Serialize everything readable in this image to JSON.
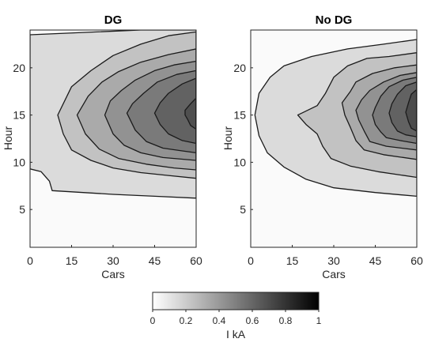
{
  "chart_data": [
    {
      "type": "heatmap",
      "subtype": "filled-contour",
      "title": "DG",
      "xlabel": "Cars",
      "ylabel": "Hour",
      "xlim": [
        0,
        60
      ],
      "ylim": [
        1,
        24
      ],
      "xticks": [
        0,
        15,
        30,
        45,
        60
      ],
      "yticks": [
        5,
        10,
        15,
        20
      ],
      "levels": [
        0.1,
        0.2,
        0.3,
        0.4,
        0.5,
        0.6,
        0.7
      ],
      "peak_value": 0.75,
      "peak_location": {
        "cars": 60,
        "hour": 15
      },
      "contours": [
        {
          "level": 0.1,
          "points": [
            [
              0,
              23.5
            ],
            [
              40,
              24
            ],
            [
              60,
              24
            ],
            [
              60,
              6.2
            ],
            [
              45,
              6.4
            ],
            [
              30,
              6.6
            ],
            [
              8,
              7
            ],
            [
              7,
              8
            ],
            [
              4,
              9
            ],
            [
              0,
              9.3
            ]
          ]
        },
        {
          "level": 0.2,
          "points": [
            [
              60,
              23.8
            ],
            [
              50,
              23.4
            ],
            [
              40,
              22.5
            ],
            [
              30,
              21.3
            ],
            [
              22,
              19.7
            ],
            [
              15,
              18
            ],
            [
              10,
              15
            ],
            [
              12,
              13
            ],
            [
              15,
              11.3
            ],
            [
              22,
              10.2
            ],
            [
              30,
              9.4
            ],
            [
              40,
              8.9
            ],
            [
              50,
              8.6
            ],
            [
              60,
              8.3
            ]
          ]
        },
        {
          "level": 0.3,
          "points": [
            [
              60,
              22
            ],
            [
              50,
              21.4
            ],
            [
              40,
              20.6
            ],
            [
              32,
              19.6
            ],
            [
              26,
              18.5
            ],
            [
              21,
              17
            ],
            [
              17,
              15
            ],
            [
              20,
              13
            ],
            [
              25,
              11.4
            ],
            [
              32,
              10.4
            ],
            [
              42,
              9.8
            ],
            [
              52,
              9.4
            ],
            [
              60,
              9.2
            ]
          ]
        },
        {
          "level": 0.4,
          "points": [
            [
              60,
              20.7
            ],
            [
              52,
              20.3
            ],
            [
              45,
              19.7
            ],
            [
              38,
              18.7
            ],
            [
              33,
              17.6
            ],
            [
              29,
              16.5
            ],
            [
              27,
              15
            ],
            [
              30,
              13
            ],
            [
              34,
              11.8
            ],
            [
              40,
              11
            ],
            [
              48,
              10.5
            ],
            [
              60,
              10.2
            ]
          ]
        },
        {
          "level": 0.5,
          "points": [
            [
              60,
              19.7
            ],
            [
              53,
              19.3
            ],
            [
              46,
              18.5
            ],
            [
              41,
              17.3
            ],
            [
              37,
              16.2
            ],
            [
              35,
              15.2
            ],
            [
              38,
              13.4
            ],
            [
              42,
              12.2
            ],
            [
              48,
              11.5
            ],
            [
              55,
              11.2
            ],
            [
              60,
              11
            ]
          ]
        },
        {
          "level": 0.6,
          "points": [
            [
              60,
              18.9
            ],
            [
              55,
              18.3
            ],
            [
              50,
              17.3
            ],
            [
              47,
              16.3
            ],
            [
              45,
              15.2
            ],
            [
              47,
              14
            ],
            [
              50,
              13
            ],
            [
              55,
              12.3
            ],
            [
              60,
              12
            ]
          ]
        },
        {
          "level": 0.7,
          "points": [
            [
              60,
              16.8
            ],
            [
              58,
              16.2
            ],
            [
              56,
              15.5
            ],
            [
              56,
              15
            ],
            [
              57,
              14.5
            ],
            [
              58,
              13.9
            ],
            [
              60,
              13.5
            ]
          ]
        }
      ]
    },
    {
      "type": "heatmap",
      "subtype": "filled-contour",
      "title": "No DG",
      "xlabel": "Cars",
      "ylabel": "Hour",
      "xlim": [
        0,
        60
      ],
      "ylim": [
        1,
        24
      ],
      "xticks": [
        0,
        15,
        30,
        45,
        60
      ],
      "yticks": [
        5,
        10,
        15,
        20
      ],
      "levels": [
        0.1,
        0.2,
        0.3,
        0.4,
        0.5,
        0.6,
        0.7
      ],
      "peak_value": 0.78,
      "peak_location": {
        "cars": 60,
        "hour": 15
      },
      "contours": [
        {
          "level": 0.1,
          "points": [
            [
              60,
              23
            ],
            [
              48,
              22.5
            ],
            [
              35,
              22
            ],
            [
              22,
              21.2
            ],
            [
              12,
              20.2
            ],
            [
              7,
              19
            ],
            [
              3,
              17.3
            ],
            [
              1.5,
              15
            ],
            [
              3,
              12.8
            ],
            [
              6,
              11
            ],
            [
              12,
              9.5
            ],
            [
              20,
              8.2
            ],
            [
              30,
              7.3
            ],
            [
              45,
              6.8
            ],
            [
              60,
              6.4
            ]
          ]
        },
        {
          "level": 0.2,
          "points": [
            [
              60,
              21.6
            ],
            [
              50,
              21.2
            ],
            [
              42,
              21
            ],
            [
              35,
              20.2
            ],
            [
              30,
              19
            ],
            [
              27,
              17.3
            ],
            [
              24,
              16
            ],
            [
              17,
              15
            ],
            [
              20,
              14
            ],
            [
              24,
              13
            ],
            [
              26,
              11.7
            ],
            [
              29,
              10.4
            ],
            [
              36,
              9.6
            ],
            [
              46,
              9
            ],
            [
              60,
              8.4
            ]
          ]
        },
        {
          "level": 0.3,
          "points": [
            [
              60,
              20.3
            ],
            [
              52,
              20
            ],
            [
              44,
              19.4
            ],
            [
              38,
              18.5
            ],
            [
              36,
              17.5
            ],
            [
              33,
              16.3
            ],
            [
              34,
              15
            ],
            [
              36,
              13.7
            ],
            [
              38,
              12.3
            ],
            [
              41,
              11.3
            ],
            [
              48,
              10.8
            ],
            [
              60,
              10.3
            ]
          ]
        },
        {
          "level": 0.4,
          "points": [
            [
              60,
              19.5
            ],
            [
              54,
              19.2
            ],
            [
              48,
              18.5
            ],
            [
              43,
              17.6
            ],
            [
              40,
              16.6
            ],
            [
              38,
              15.5
            ],
            [
              39,
              14.5
            ],
            [
              41,
              13.3
            ],
            [
              43,
              12.2
            ],
            [
              49,
              11.7
            ],
            [
              60,
              11.3
            ]
          ]
        },
        {
          "level": 0.5,
          "points": [
            [
              60,
              19
            ],
            [
              55,
              18.7
            ],
            [
              50,
              18
            ],
            [
              47,
              17
            ],
            [
              45,
              15.8
            ],
            [
              44,
              15
            ],
            [
              45,
              14
            ],
            [
              47,
              13.2
            ],
            [
              49,
              12.6
            ],
            [
              54,
              12.3
            ],
            [
              60,
              12
            ]
          ]
        },
        {
          "level": 0.6,
          "points": [
            [
              60,
              18.5
            ],
            [
              56,
              18.1
            ],
            [
              53,
              17.2
            ],
            [
              51,
              16.2
            ],
            [
              50,
              15.2
            ],
            [
              51,
              14.2
            ],
            [
              53,
              13.3
            ],
            [
              56,
              12.9
            ],
            [
              60,
              12.7
            ]
          ]
        },
        {
          "level": 0.7,
          "points": [
            [
              60,
              17.7
            ],
            [
              58,
              17.2
            ],
            [
              57,
              16.3
            ],
            [
              56,
              15.3
            ],
            [
              57,
              14.3
            ],
            [
              58,
              13.6
            ],
            [
              60,
              13.3
            ]
          ]
        }
      ]
    }
  ],
  "colorbar": {
    "label": "I kA",
    "min": 0,
    "max": 1,
    "ticks": [
      "0",
      "0.2",
      "0.4",
      "0.6",
      "0.8",
      "1"
    ],
    "low_color": "#ffffff",
    "high_color": "#000000"
  }
}
